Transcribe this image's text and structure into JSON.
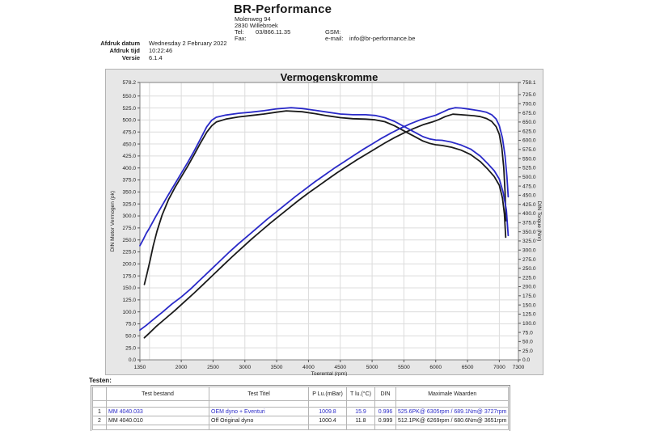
{
  "header": {
    "company": "BR-Performance",
    "address_line1": "Molenweg 94",
    "address_line2": "2830 Willebroek",
    "tel_label": "Tel:",
    "tel_value": "03/866.11.35",
    "fax_label": "Fax:",
    "gsm_label": "GSM:",
    "email_label": "e-mail:",
    "email_value": "info@br-performance.be"
  },
  "meta": {
    "afdruk_datum_label": "Afdruk datum",
    "afdruk_datum_value": "Wednesday 2 February 2022",
    "afdruk_tijd_label": "Afdruk tijd",
    "afdruk_tijd_value": "10:22:46",
    "versie_label": "Versie",
    "versie_value": "6.1.4"
  },
  "colors": {
    "run1": "#2a2ac8",
    "run2": "#1a1a1a",
    "grid": "#dcdcdc",
    "plot_border": "#828282",
    "panel_bg": "#e7e7e7"
  },
  "chart_data": {
    "type": "line",
    "title": "Vermogenskromme",
    "xlabel": "Toerental (rpm)",
    "ylabel_left": "DIN Motor Vermogen (pk)",
    "ylabel_right": "DIN Torque (Nm)",
    "xlim": [
      1350,
      7300
    ],
    "ylim_left": [
      0,
      578.2
    ],
    "ylim_right": [
      0,
      758.1
    ],
    "x_ticks": [
      1350,
      2000,
      2500,
      3000,
      3500,
      4000,
      4500,
      5000,
      5500,
      6000,
      6500,
      7000,
      7300
    ],
    "grid_x": [
      1500,
      2000,
      2500,
      3000,
      3500,
      4000,
      4500,
      5000,
      5500,
      6000,
      6500,
      7000
    ],
    "y_left_ticks": [
      578.2,
      550,
      525,
      500,
      475,
      450,
      425,
      400,
      375,
      350,
      325,
      300,
      275,
      250,
      225,
      200,
      175,
      150,
      125,
      100,
      75,
      50,
      25,
      0
    ],
    "y_right_ticks": [
      758.1,
      725,
      700,
      675,
      650,
      625,
      600,
      575,
      550,
      525,
      500,
      475,
      450,
      425,
      400,
      375,
      350,
      325,
      300,
      275,
      250,
      225,
      200,
      175,
      150,
      125,
      100,
      75,
      50,
      25,
      0
    ],
    "legend": "none",
    "grid": true,
    "series": [
      {
        "name": "Off Original dyno - Vermogen (pk)",
        "axis": "left",
        "color": "#1a1a1a",
        "points": [
          [
            1420,
            46
          ],
          [
            1500,
            56
          ],
          [
            1600,
            69
          ],
          [
            1750,
            86
          ],
          [
            1900,
            103
          ],
          [
            2050,
            121
          ],
          [
            2200,
            139
          ],
          [
            2350,
            158
          ],
          [
            2500,
            177
          ],
          [
            2650,
            196
          ],
          [
            2800,
            215
          ],
          [
            2950,
            233
          ],
          [
            3100,
            251
          ],
          [
            3250,
            268
          ],
          [
            3400,
            285
          ],
          [
            3550,
            301
          ],
          [
            3700,
            317
          ],
          [
            3850,
            333
          ],
          [
            4000,
            348
          ],
          [
            4150,
            362
          ],
          [
            4300,
            376
          ],
          [
            4450,
            390
          ],
          [
            4600,
            403
          ],
          [
            4750,
            416
          ],
          [
            4900,
            428
          ],
          [
            5050,
            440
          ],
          [
            5200,
            452
          ],
          [
            5350,
            463
          ],
          [
            5500,
            473
          ],
          [
            5650,
            482
          ],
          [
            5800,
            490
          ],
          [
            5950,
            496
          ],
          [
            6050,
            501
          ],
          [
            6150,
            507
          ],
          [
            6269,
            512.1
          ],
          [
            6400,
            511
          ],
          [
            6500,
            510
          ],
          [
            6600,
            509
          ],
          [
            6700,
            507
          ],
          [
            6800,
            503
          ],
          [
            6880,
            497
          ],
          [
            6950,
            486
          ],
          [
            7000,
            470
          ],
          [
            7040,
            442
          ],
          [
            7070,
            400
          ],
          [
            7090,
            350
          ],
          [
            7105,
            290
          ]
        ]
      },
      {
        "name": "Off Original dyno - Koppel (Nm)",
        "axis": "right",
        "color": "#1a1a1a",
        "points": [
          [
            1420,
            206
          ],
          [
            1460,
            235
          ],
          [
            1510,
            272
          ],
          [
            1560,
            312
          ],
          [
            1620,
            352
          ],
          [
            1700,
            396
          ],
          [
            1800,
            438
          ],
          [
            1900,
            471
          ],
          [
            2000,
            500
          ],
          [
            2100,
            529
          ],
          [
            2200,
            560
          ],
          [
            2300,
            592
          ],
          [
            2400,
            622
          ],
          [
            2480,
            640
          ],
          [
            2550,
            650
          ],
          [
            2700,
            658
          ],
          [
            2900,
            664
          ],
          [
            3100,
            668
          ],
          [
            3300,
            672
          ],
          [
            3500,
            677
          ],
          [
            3651,
            680.6
          ],
          [
            3900,
            678
          ],
          [
            4100,
            673
          ],
          [
            4300,
            667
          ],
          [
            4500,
            662
          ],
          [
            4700,
            659
          ],
          [
            4900,
            658
          ],
          [
            5050,
            656
          ],
          [
            5200,
            651
          ],
          [
            5350,
            640
          ],
          [
            5500,
            626
          ],
          [
            5650,
            612
          ],
          [
            5800,
            598
          ],
          [
            5900,
            592
          ],
          [
            6000,
            588
          ],
          [
            6100,
            586
          ],
          [
            6250,
            581
          ],
          [
            6400,
            573
          ],
          [
            6550,
            561
          ],
          [
            6700,
            542
          ],
          [
            6820,
            521
          ],
          [
            6920,
            501
          ],
          [
            7000,
            477
          ],
          [
            7050,
            442
          ],
          [
            7080,
            398
          ],
          [
            7100,
            335
          ]
        ]
      },
      {
        "name": "OEM dyno + Eventuri - Vermogen (pk)",
        "axis": "left",
        "color": "#2a2ac8",
        "points": [
          [
            1350,
            62
          ],
          [
            1450,
            72
          ],
          [
            1550,
            83
          ],
          [
            1700,
            99
          ],
          [
            1850,
            116
          ],
          [
            2000,
            131
          ],
          [
            2150,
            148
          ],
          [
            2300,
            167
          ],
          [
            2450,
            186
          ],
          [
            2600,
            205
          ],
          [
            2750,
            224
          ],
          [
            2900,
            242
          ],
          [
            3050,
            259
          ],
          [
            3200,
            276
          ],
          [
            3350,
            293
          ],
          [
            3500,
            309
          ],
          [
            3650,
            325
          ],
          [
            3800,
            341
          ],
          [
            3950,
            356
          ],
          [
            4100,
            371
          ],
          [
            4250,
            385
          ],
          [
            4400,
            399
          ],
          [
            4550,
            412
          ],
          [
            4700,
            425
          ],
          [
            4850,
            438
          ],
          [
            5000,
            450
          ],
          [
            5150,
            462
          ],
          [
            5300,
            473
          ],
          [
            5450,
            483
          ],
          [
            5600,
            492
          ],
          [
            5750,
            500
          ],
          [
            5900,
            506
          ],
          [
            6000,
            510
          ],
          [
            6100,
            516
          ],
          [
            6200,
            522
          ],
          [
            6305,
            525.6
          ],
          [
            6400,
            525
          ],
          [
            6500,
            523
          ],
          [
            6600,
            521
          ],
          [
            6700,
            519
          ],
          [
            6800,
            516
          ],
          [
            6880,
            511
          ],
          [
            6950,
            502
          ],
          [
            7000,
            488
          ],
          [
            7050,
            462
          ],
          [
            7090,
            425
          ],
          [
            7120,
            382
          ],
          [
            7140,
            340
          ]
        ]
      },
      {
        "name": "OEM dyno + Eventuri - Koppel (Nm)",
        "axis": "right",
        "color": "#2a2ac8",
        "points": [
          [
            1350,
            312
          ],
          [
            1400,
            328
          ],
          [
            1450,
            346
          ],
          [
            1500,
            360
          ],
          [
            1600,
            392
          ],
          [
            1700,
            422
          ],
          [
            1800,
            452
          ],
          [
            1900,
            481
          ],
          [
            2000,
            510
          ],
          [
            2100,
            539
          ],
          [
            2200,
            570
          ],
          [
            2300,
            603
          ],
          [
            2400,
            637
          ],
          [
            2480,
            655
          ],
          [
            2550,
            663
          ],
          [
            2700,
            669
          ],
          [
            2900,
            674
          ],
          [
            3100,
            677
          ],
          [
            3300,
            681
          ],
          [
            3500,
            686
          ],
          [
            3727,
            689.1
          ],
          [
            3900,
            687
          ],
          [
            4100,
            682
          ],
          [
            4300,
            677
          ],
          [
            4500,
            672
          ],
          [
            4700,
            670
          ],
          [
            4900,
            670
          ],
          [
            5050,
            668
          ],
          [
            5200,
            662
          ],
          [
            5350,
            652
          ],
          [
            5500,
            638
          ],
          [
            5650,
            624
          ],
          [
            5800,
            610
          ],
          [
            5900,
            604
          ],
          [
            6000,
            601
          ],
          [
            6100,
            600
          ],
          [
            6250,
            595
          ],
          [
            6400,
            587
          ],
          [
            6550,
            576
          ],
          [
            6700,
            557
          ],
          [
            6820,
            536
          ],
          [
            6920,
            517
          ],
          [
            7000,
            494
          ],
          [
            7060,
            458
          ],
          [
            7110,
            410
          ],
          [
            7140,
            340
          ]
        ]
      }
    ]
  },
  "testen": {
    "label": "Testen:",
    "headers": {
      "test_bestand": "Test bestand",
      "test_titel": "Test Titel",
      "p_lu": "P Lu.(mBar)",
      "t_lu": "T lu.(°C)",
      "din": "DIN",
      "max": "Maximale Waarden"
    },
    "rows": [
      {
        "nr": "1",
        "test_bestand": "MM 4040.033",
        "test_titel": "OEM dyno + Eventuri",
        "p_lu": "1009.8",
        "t_lu": "15.9",
        "din": "0.996",
        "max": "525.6PK@ 6305rpm / 689.1Nm@ 3727rpm",
        "color": "#2a2ac8"
      },
      {
        "nr": "2",
        "test_bestand": "MM 4040.010",
        "test_titel": "Off Original dyno",
        "p_lu": "1000.4",
        "t_lu": "11.8",
        "din": "0.999",
        "max": "512.1PK@ 6269rpm / 680.6Nm@ 3651rpm",
        "color": "#1a1a1a"
      }
    ]
  }
}
